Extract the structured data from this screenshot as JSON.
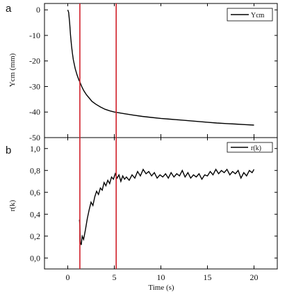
{
  "chart_data": [
    {
      "panel_label": "a",
      "type": "line",
      "ylabel": "Ycm (mm)",
      "xlim": [
        -2.5,
        22.5
      ],
      "ylim": [
        -50,
        2.5
      ],
      "yticks": [
        0,
        -10,
        -20,
        -30,
        -40,
        -50
      ],
      "ytick_labels": [
        "0",
        "-10",
        "-20",
        "-30",
        "-40",
        "-50"
      ],
      "legend": {
        "position": "top-right",
        "entries": [
          "Ycm"
        ]
      },
      "series": [
        {
          "name": "Ycm",
          "color": "#000000",
          "x": [
            0.0,
            0.1,
            0.2,
            0.3,
            0.4,
            0.5,
            0.6,
            0.8,
            1.0,
            1.2,
            1.3,
            1.5,
            1.7,
            2.0,
            2.3,
            2.6,
            3.0,
            3.5,
            4.0,
            4.5,
            5.0,
            5.5,
            6.0,
            7.0,
            8.0,
            9.0,
            10.0,
            11.0,
            12.0,
            13.0,
            14.0,
            15.0,
            16.0,
            17.0,
            18.0,
            19.0,
            20.0
          ],
          "y": [
            0.0,
            -1.0,
            -5.0,
            -10.0,
            -14.0,
            -17.0,
            -19.5,
            -23.0,
            -25.5,
            -27.5,
            -28.2,
            -30.0,
            -31.5,
            -33.2,
            -34.5,
            -35.8,
            -36.9,
            -38.0,
            -38.9,
            -39.5,
            -40.0,
            -40.3,
            -40.6,
            -41.2,
            -41.7,
            -42.1,
            -42.5,
            -42.8,
            -43.1,
            -43.4,
            -43.7,
            -44.0,
            -44.3,
            -44.5,
            -44.7,
            -44.9,
            -45.1
          ]
        }
      ]
    },
    {
      "panel_label": "b",
      "type": "line",
      "xlabel": "Time (s)",
      "ylabel": "r(k)",
      "xlim": [
        -2.5,
        22.5
      ],
      "ylim": [
        -0.1,
        1.1
      ],
      "xticks": [
        0,
        5,
        10,
        15,
        20
      ],
      "xtick_labels": [
        "0",
        "5",
        "10",
        "15",
        "20"
      ],
      "yticks": [
        0.0,
        0.2,
        0.4,
        0.6,
        0.8,
        1.0
      ],
      "ytick_labels": [
        "0,0",
        "0,2",
        "0,4",
        "0,6",
        "0,8",
        "1,0"
      ],
      "legend": {
        "position": "top-right",
        "entries": [
          "r(k)"
        ]
      },
      "series": [
        {
          "name": "r(k)",
          "color": "#000000",
          "x": [
            1.25,
            1.3,
            1.35,
            1.45,
            1.55,
            1.7,
            1.9,
            2.1,
            2.3,
            2.5,
            2.7,
            2.9,
            3.1,
            3.3,
            3.5,
            3.7,
            3.9,
            4.1,
            4.3,
            4.5,
            4.7,
            4.9,
            5.1,
            5.3,
            5.5,
            5.7,
            5.9,
            6.1,
            6.3,
            6.6,
            6.9,
            7.2,
            7.5,
            7.8,
            8.1,
            8.4,
            8.7,
            9.0,
            9.3,
            9.6,
            9.9,
            10.2,
            10.5,
            10.8,
            11.1,
            11.4,
            11.7,
            12.0,
            12.3,
            12.6,
            12.9,
            13.2,
            13.5,
            13.8,
            14.1,
            14.4,
            14.7,
            15.0,
            15.3,
            15.6,
            15.9,
            16.2,
            16.5,
            16.8,
            17.1,
            17.4,
            17.7,
            18.0,
            18.3,
            18.6,
            18.9,
            19.2,
            19.5,
            19.8,
            20.0
          ],
          "y": [
            0.35,
            0.3,
            0.14,
            0.12,
            0.2,
            0.17,
            0.26,
            0.36,
            0.44,
            0.51,
            0.48,
            0.56,
            0.61,
            0.58,
            0.64,
            0.62,
            0.69,
            0.66,
            0.71,
            0.68,
            0.74,
            0.72,
            0.77,
            0.73,
            0.76,
            0.7,
            0.75,
            0.72,
            0.74,
            0.71,
            0.76,
            0.73,
            0.79,
            0.75,
            0.81,
            0.77,
            0.79,
            0.75,
            0.78,
            0.73,
            0.76,
            0.74,
            0.77,
            0.73,
            0.78,
            0.74,
            0.77,
            0.75,
            0.8,
            0.74,
            0.78,
            0.73,
            0.76,
            0.74,
            0.77,
            0.72,
            0.76,
            0.75,
            0.79,
            0.76,
            0.81,
            0.77,
            0.8,
            0.78,
            0.81,
            0.76,
            0.79,
            0.77,
            0.8,
            0.73,
            0.78,
            0.75,
            0.8,
            0.78,
            0.81
          ]
        }
      ]
    }
  ],
  "markers": {
    "color": "#d0202a",
    "times": [
      1.3,
      5.2
    ]
  }
}
